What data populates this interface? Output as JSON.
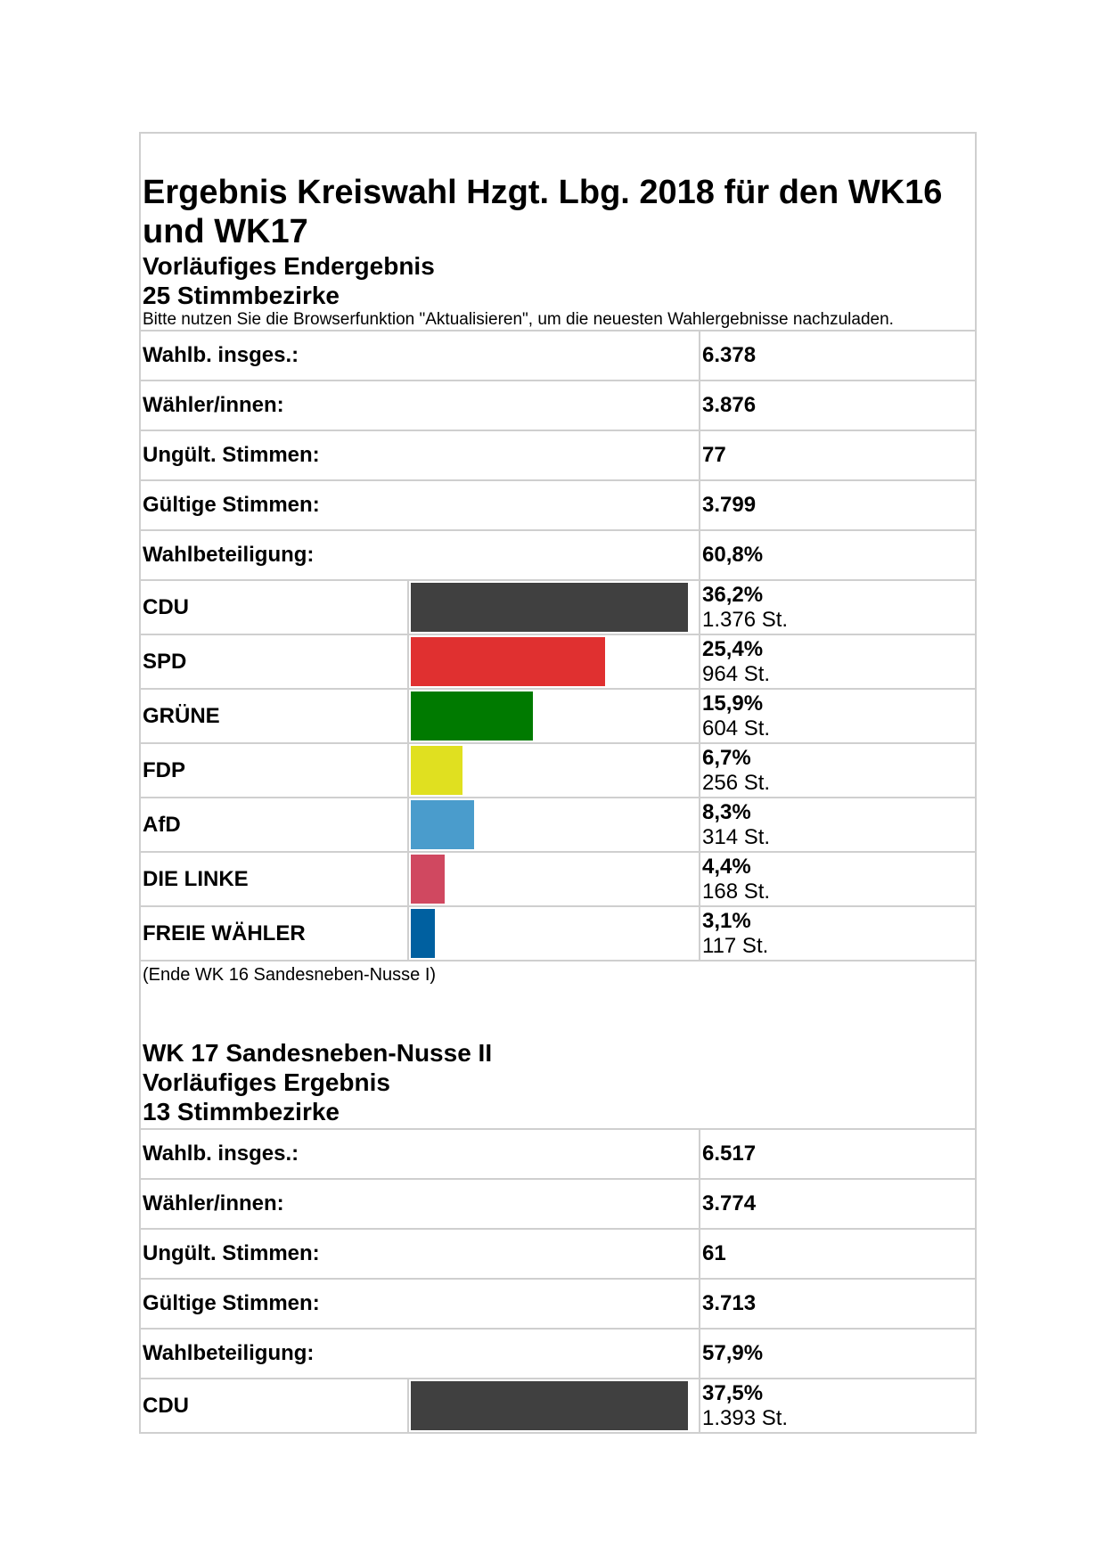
{
  "document": {
    "title": "Ergebnis Kreiswahl Hzgt. Lbg. 2018 für den WK16 und WK17",
    "wk16": {
      "subtitle1": "Vorläufiges Endergebnis",
      "subtitle2": "25 Stimmbezirke",
      "note": "Bitte nutzen Sie die Browserfunktion \"Aktualisieren\", um die neuesten Wahlergebnisse nachzuladen.",
      "stats": [
        {
          "label": "Wahlb. insges.:",
          "value": "6.378"
        },
        {
          "label": "Wähler/innen:",
          "value": "3.876"
        },
        {
          "label": "Ungült. Stimmen:",
          "value": "77"
        },
        {
          "label": "Gültige Stimmen:",
          "value": "3.799"
        },
        {
          "label": "Wahlbeteiligung:",
          "value": "60,8%"
        }
      ],
      "parties": [
        {
          "name": "CDU",
          "percent": "36,2%",
          "votes": "1.376 St.",
          "share": 36.2,
          "color": "#404040"
        },
        {
          "name": "SPD",
          "percent": "25,4%",
          "votes": "964 St.",
          "share": 25.4,
          "color": "#e03030"
        },
        {
          "name": "GRÜNE",
          "percent": "15,9%",
          "votes": "604 St.",
          "share": 15.9,
          "color": "#007a00"
        },
        {
          "name": "FDP",
          "percent": "6,7%",
          "votes": "256 St.",
          "share": 6.7,
          "color": "#e0e020"
        },
        {
          "name": "AfD",
          "percent": "8,3%",
          "votes": "314 St.",
          "share": 8.3,
          "color": "#4a9ccc"
        },
        {
          "name": "DIE LINKE",
          "percent": "4,4%",
          "votes": "168 St.",
          "share": 4.4,
          "color": "#d04860"
        },
        {
          "name": "FREIE WÄHLER",
          "percent": "3,1%",
          "votes": "117 St.",
          "share": 3.1,
          "color": "#0060a0"
        }
      ],
      "end_note": "(Ende WK 16 Sandesneben-Nusse I)"
    },
    "wk17": {
      "title": "WK 17 Sandesneben-Nusse II",
      "subtitle1": "Vorläufiges Ergebnis",
      "subtitle2": "13 Stimmbezirke",
      "stats": [
        {
          "label": "Wahlb. insges.:",
          "value": "6.517"
        },
        {
          "label": "Wähler/innen:",
          "value": "3.774"
        },
        {
          "label": "Ungült. Stimmen:",
          "value": "61"
        },
        {
          "label": "Gültige Stimmen:",
          "value": "3.713"
        },
        {
          "label": "Wahlbeteiligung:",
          "value": "57,9%"
        }
      ],
      "parties": [
        {
          "name": "CDU",
          "percent": "37,5%",
          "votes": "1.393 St.",
          "share": 37.5,
          "color": "#404040"
        }
      ]
    }
  }
}
